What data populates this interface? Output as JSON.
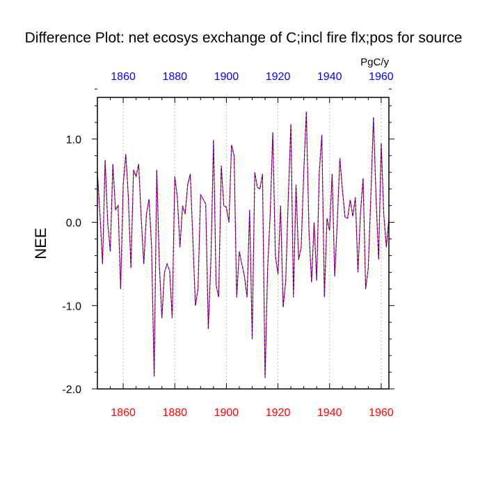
{
  "chart_data": {
    "type": "line",
    "title": "Difference Plot: net ecosys exchange of C;incl fire flx;pos for source",
    "units": "PgC/y",
    "ylabel": "NEE",
    "xlim": [
      1850,
      1963
    ],
    "ylim": [
      -2.0,
      1.5
    ],
    "x_ticks": [
      1860,
      1880,
      1900,
      1920,
      1940,
      1960
    ],
    "x_tick_labels": [
      "1860",
      "1880",
      "1900",
      "1920",
      "1940",
      "1960"
    ],
    "y_ticks": [
      -2.0,
      -1.0,
      0.0,
      1.0
    ],
    "y_tick_labels": [
      "-2.0",
      "-1.0",
      "0.0",
      "1.0"
    ],
    "grid": "vertical dashed at major x ticks",
    "colors": {
      "bottom_ticks": "#ff0000",
      "top_ticks": "#0000ff",
      "series_a": "#ff0000",
      "series_b": "#0000ff",
      "grid": "#bbbbbb",
      "axis": "#000000"
    },
    "x": [
      1850,
      1851,
      1852,
      1853,
      1854,
      1855,
      1856,
      1857,
      1858,
      1859,
      1860,
      1861,
      1862,
      1863,
      1864,
      1865,
      1866,
      1867,
      1868,
      1869,
      1870,
      1871,
      1872,
      1873,
      1874,
      1875,
      1876,
      1877,
      1878,
      1879,
      1880,
      1881,
      1882,
      1883,
      1884,
      1885,
      1886,
      1887,
      1888,
      1889,
      1890,
      1891,
      1892,
      1893,
      1894,
      1895,
      1896,
      1897,
      1898,
      1899,
      1900,
      1901,
      1902,
      1903,
      1904,
      1905,
      1906,
      1907,
      1908,
      1909,
      1910,
      1911,
      1912,
      1913,
      1914,
      1915,
      1916,
      1917,
      1918,
      1919,
      1920,
      1921,
      1922,
      1923,
      1924,
      1925,
      1926,
      1927,
      1928,
      1929,
      1930,
      1931,
      1932,
      1933,
      1934,
      1935,
      1936,
      1937,
      1938,
      1939,
      1940,
      1941,
      1942,
      1943,
      1944,
      1945,
      1946,
      1947,
      1948,
      1949,
      1950,
      1951,
      1952,
      1953,
      1954,
      1955,
      1956,
      1957,
      1958,
      1959,
      1960,
      1961,
      1962,
      1963
    ],
    "y": [
      0.6,
      0.1,
      -0.5,
      0.75,
      0.0,
      -0.35,
      0.7,
      0.15,
      0.2,
      -0.8,
      0.45,
      0.82,
      0.3,
      -0.55,
      0.63,
      0.55,
      0.7,
      0.05,
      -0.5,
      0.1,
      0.28,
      -0.3,
      -1.85,
      0.63,
      -0.5,
      -1.15,
      -0.6,
      -0.5,
      -0.58,
      -1.15,
      0.55,
      0.3,
      -0.3,
      0.2,
      0.1,
      0.45,
      0.58,
      -0.2,
      -1.0,
      -0.8,
      0.33,
      0.28,
      0.22,
      -1.28,
      -0.45,
      0.99,
      -0.75,
      -0.9,
      0.68,
      0.2,
      0.18,
      0.0,
      0.93,
      0.8,
      -0.9,
      -0.35,
      -0.5,
      -0.65,
      -0.9,
      0.15,
      -1.4,
      0.6,
      0.42,
      0.4,
      0.58,
      -1.87,
      -0.55,
      0.1,
      1.08,
      -0.4,
      -0.62,
      0.2,
      -1.02,
      -0.7,
      0.3,
      1.18,
      -0.9,
      0.45,
      -0.45,
      -0.3,
      0.6,
      1.33,
      -0.1,
      -0.72,
      0.0,
      -0.7,
      0.6,
      1.05,
      -0.9,
      0.05,
      -0.1,
      0.58,
      -0.65,
      0.0,
      0.77,
      0.38,
      0.06,
      0.05,
      0.27,
      0.07,
      0.3,
      -0.6,
      0.12,
      0.53,
      -0.8,
      -0.55,
      0.3,
      1.26,
      0.3,
      -0.45,
      0.95,
      0.1,
      -0.3,
      0.05
    ]
  }
}
